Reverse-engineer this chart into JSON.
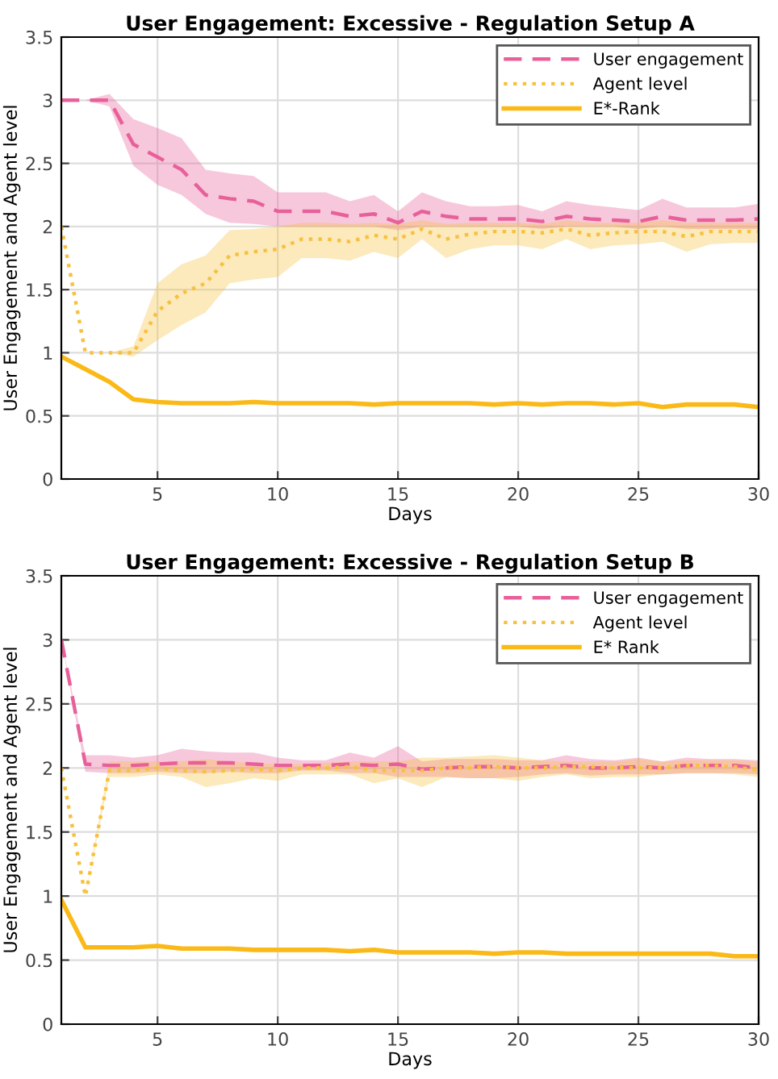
{
  "chart_data": [
    {
      "type": "line",
      "title": "User Engagement: Excessive - Regulation Setup A",
      "xlabel": "Days",
      "ylabel": "User Engagement and Agent level",
      "x": [
        1,
        2,
        3,
        4,
        5,
        6,
        7,
        8,
        9,
        10,
        11,
        12,
        13,
        14,
        15,
        16,
        17,
        18,
        19,
        20,
        21,
        22,
        23,
        24,
        25,
        26,
        27,
        28,
        29,
        30
      ],
      "xlim": [
        1,
        30
      ],
      "xticks": [
        5,
        10,
        15,
        20,
        25,
        30
      ],
      "ylim": [
        0,
        3.5
      ],
      "yticks": [
        0,
        0.5,
        1,
        1.5,
        2,
        2.5,
        3,
        3.5
      ],
      "grid": true,
      "legend": "top right",
      "series": [
        {
          "name": "User engagement",
          "color": "#e8609a",
          "line_style": "dashed",
          "values": [
            3,
            3,
            3,
            2.65,
            2.55,
            2.45,
            2.25,
            2.22,
            2.2,
            2.12,
            2.12,
            2.12,
            2.08,
            2.1,
            2.03,
            2.12,
            2.08,
            2.06,
            2.06,
            2.06,
            2.04,
            2.08,
            2.06,
            2.05,
            2.04,
            2.08,
            2.05,
            2.05,
            2.05,
            2.06
          ],
          "lower": [
            3,
            3,
            2.95,
            2.48,
            2.33,
            2.25,
            2.1,
            2.03,
            2.02,
            2.0,
            2.0,
            2.0,
            2.0,
            2.0,
            1.97,
            2.0,
            2.0,
            2.0,
            2.0,
            2.0,
            1.98,
            2.0,
            2.0,
            2.0,
            1.98,
            2.0,
            1.98,
            1.98,
            1.98,
            1.98
          ],
          "upper": [
            3,
            3,
            3.05,
            2.85,
            2.78,
            2.7,
            2.45,
            2.42,
            2.4,
            2.27,
            2.27,
            2.27,
            2.2,
            2.25,
            2.12,
            2.27,
            2.2,
            2.16,
            2.16,
            2.17,
            2.12,
            2.2,
            2.17,
            2.15,
            2.13,
            2.22,
            2.15,
            2.15,
            2.15,
            2.18
          ]
        },
        {
          "name": "Agent level",
          "color": "#f7c140",
          "line_style": "dotted",
          "values": [
            2,
            1,
            1,
            1,
            1.33,
            1.47,
            1.55,
            1.77,
            1.8,
            1.82,
            1.9,
            1.9,
            1.88,
            1.93,
            1.9,
            1.98,
            1.9,
            1.94,
            1.96,
            1.96,
            1.95,
            1.98,
            1.93,
            1.95,
            1.96,
            1.96,
            1.92,
            1.96,
            1.96,
            1.96
          ],
          "lower": [
            2,
            1,
            1,
            0.97,
            1.1,
            1.22,
            1.32,
            1.55,
            1.58,
            1.6,
            1.75,
            1.75,
            1.73,
            1.8,
            1.75,
            1.9,
            1.75,
            1.82,
            1.85,
            1.85,
            1.82,
            1.9,
            1.82,
            1.85,
            1.86,
            1.88,
            1.8,
            1.86,
            1.87,
            1.87
          ],
          "upper": [
            2,
            1,
            1,
            1.05,
            1.55,
            1.7,
            1.77,
            1.97,
            1.98,
            2.0,
            2.03,
            2.03,
            2.02,
            2.03,
            2.02,
            2.05,
            2.02,
            2.03,
            2.03,
            2.03,
            2.02,
            2.05,
            2.03,
            2.03,
            2.03,
            2.05,
            2.03,
            2.03,
            2.03,
            2.03
          ]
        },
        {
          "name": "E*-Rank",
          "color": "#fbb917",
          "line_style": "solid",
          "values": [
            0.97,
            0.87,
            0.77,
            0.63,
            0.61,
            0.6,
            0.6,
            0.6,
            0.61,
            0.6,
            0.6,
            0.6,
            0.6,
            0.59,
            0.6,
            0.6,
            0.6,
            0.6,
            0.59,
            0.6,
            0.59,
            0.6,
            0.6,
            0.59,
            0.6,
            0.57,
            0.59,
            0.59,
            0.59,
            0.57
          ]
        }
      ]
    },
    {
      "type": "line",
      "title": "User Engagement: Excessive - Regulation Setup B",
      "xlabel": "Days",
      "ylabel": "User Engagement and Agent level",
      "x": [
        1,
        2,
        3,
        4,
        5,
        6,
        7,
        8,
        9,
        10,
        11,
        12,
        13,
        14,
        15,
        16,
        17,
        18,
        19,
        20,
        21,
        22,
        23,
        24,
        25,
        26,
        27,
        28,
        29,
        30
      ],
      "xlim": [
        1,
        30
      ],
      "xticks": [
        5,
        10,
        15,
        20,
        25,
        30
      ],
      "ylim": [
        0,
        3.5
      ],
      "yticks": [
        0,
        0.5,
        1,
        1.5,
        2,
        2.5,
        3,
        3.5
      ],
      "grid": true,
      "legend": "top right",
      "series": [
        {
          "name": "User engagement",
          "color": "#e8609a",
          "line_style": "dashed",
          "values": [
            3,
            2.03,
            2.02,
            2.02,
            2.03,
            2.04,
            2.04,
            2.04,
            2.03,
            2.02,
            2.02,
            2.02,
            2.03,
            2.02,
            2.03,
            1.99,
            2.0,
            2.01,
            2.01,
            2.0,
            2.01,
            2.02,
            2.0,
            2.0,
            2.01,
            2.0,
            2.02,
            2.02,
            2.02,
            2.0
          ],
          "lower": [
            3,
            1.97,
            1.96,
            1.96,
            1.97,
            1.96,
            1.96,
            1.97,
            1.96,
            1.96,
            1.98,
            1.98,
            1.96,
            1.96,
            1.93,
            1.93,
            1.93,
            1.92,
            1.92,
            1.93,
            1.95,
            1.96,
            1.94,
            1.95,
            1.95,
            1.95,
            1.96,
            1.96,
            1.96,
            1.95
          ],
          "upper": [
            3,
            2.1,
            2.1,
            2.08,
            2.1,
            2.15,
            2.13,
            2.12,
            2.12,
            2.08,
            2.06,
            2.06,
            2.12,
            2.08,
            2.17,
            2.05,
            2.07,
            2.07,
            2.07,
            2.06,
            2.06,
            2.1,
            2.07,
            2.06,
            2.08,
            2.05,
            2.08,
            2.07,
            2.07,
            2.06
          ]
        },
        {
          "name": "Agent level",
          "color": "#f7c140",
          "line_style": "dotted",
          "values": [
            2,
            1,
            1.98,
            1.98,
            2.0,
            1.98,
            1.97,
            1.98,
            1.99,
            1.98,
            2.0,
            2.0,
            2.01,
            1.98,
            1.98,
            1.98,
            2.0,
            2.0,
            2.01,
            2.0,
            2.0,
            2.01,
            2.01,
            2.0,
            2.0,
            2.0,
            2.02,
            2.02,
            2.01,
            1.98
          ],
          "lower": [
            2,
            1,
            1.93,
            1.93,
            1.95,
            1.93,
            1.85,
            1.88,
            1.92,
            1.9,
            1.95,
            1.95,
            1.95,
            1.88,
            1.92,
            1.85,
            1.93,
            1.92,
            1.92,
            1.9,
            1.93,
            1.95,
            1.92,
            1.93,
            1.93,
            1.95,
            1.96,
            1.96,
            1.95,
            1.93
          ],
          "upper": [
            2,
            1,
            2.05,
            2.05,
            2.05,
            2.05,
            2.07,
            2.05,
            2.04,
            2.03,
            2.03,
            2.04,
            2.05,
            2.05,
            2.05,
            2.08,
            2.08,
            2.09,
            2.1,
            2.08,
            2.06,
            2.05,
            2.05,
            2.05,
            2.07,
            2.05,
            2.06,
            2.06,
            2.06,
            2.05
          ]
        },
        {
          "name": "E* Rank",
          "color": "#fbb917",
          "line_style": "solid",
          "values": [
            0.97,
            0.6,
            0.6,
            0.6,
            0.61,
            0.59,
            0.59,
            0.59,
            0.58,
            0.58,
            0.58,
            0.58,
            0.57,
            0.58,
            0.56,
            0.56,
            0.56,
            0.56,
            0.55,
            0.56,
            0.56,
            0.55,
            0.55,
            0.55,
            0.55,
            0.55,
            0.55,
            0.55,
            0.53,
            0.53
          ]
        }
      ]
    }
  ]
}
